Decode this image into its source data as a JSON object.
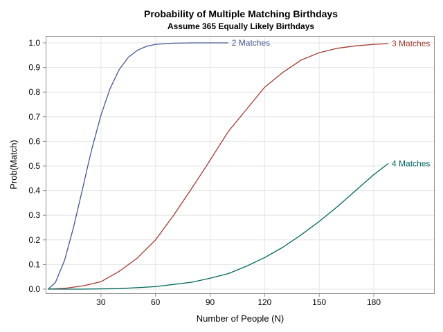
{
  "chart_data": {
    "type": "line",
    "title": "Probability of Multiple Matching Birthdays",
    "subtitle": "Assume 365 Equally Likely Birthdays",
    "xlabel": "Number of People (N)",
    "ylabel": "Prob(Match)",
    "xlim": [
      0,
      210
    ],
    "ylim": [
      0,
      1.02
    ],
    "x_ticks": [
      30,
      60,
      90,
      120,
      150,
      180
    ],
    "y_ticks": [
      "0.0",
      "0.1",
      "0.2",
      "0.3",
      "0.4",
      "0.5",
      "0.6",
      "0.7",
      "0.8",
      "0.9",
      "1.0"
    ],
    "grid": true,
    "series": [
      {
        "name": "2 Matches",
        "color": "#445694",
        "x": [
          1,
          5,
          10,
          15,
          20,
          23,
          25,
          30,
          35,
          40,
          45,
          50,
          55,
          60,
          70,
          80,
          90,
          100
        ],
        "y": [
          0.0,
          0.027,
          0.117,
          0.253,
          0.411,
          0.507,
          0.569,
          0.706,
          0.814,
          0.891,
          0.941,
          0.97,
          0.986,
          0.994,
          0.999,
          1.0,
          1.0,
          1.0
        ]
      },
      {
        "name": "3 Matches",
        "color": "#a23a2e",
        "x": [
          1,
          10,
          20,
          30,
          40,
          50,
          60,
          70,
          80,
          88,
          100,
          110,
          120,
          130,
          140,
          150,
          160,
          170,
          180,
          188
        ],
        "y": [
          0.0,
          0.003,
          0.013,
          0.03,
          0.072,
          0.126,
          0.2,
          0.3,
          0.41,
          0.5,
          0.64,
          0.73,
          0.82,
          0.88,
          0.93,
          0.96,
          0.978,
          0.988,
          0.994,
          0.997
        ]
      },
      {
        "name": "4 Matches",
        "color": "#01665e",
        "x": [
          1,
          20,
          40,
          60,
          80,
          90,
          100,
          110,
          120,
          130,
          140,
          150,
          160,
          170,
          180,
          188
        ],
        "y": [
          0.0,
          0.0,
          0.002,
          0.01,
          0.028,
          0.044,
          0.063,
          0.093,
          0.128,
          0.17,
          0.22,
          0.275,
          0.335,
          0.4,
          0.465,
          0.51
        ]
      }
    ]
  }
}
